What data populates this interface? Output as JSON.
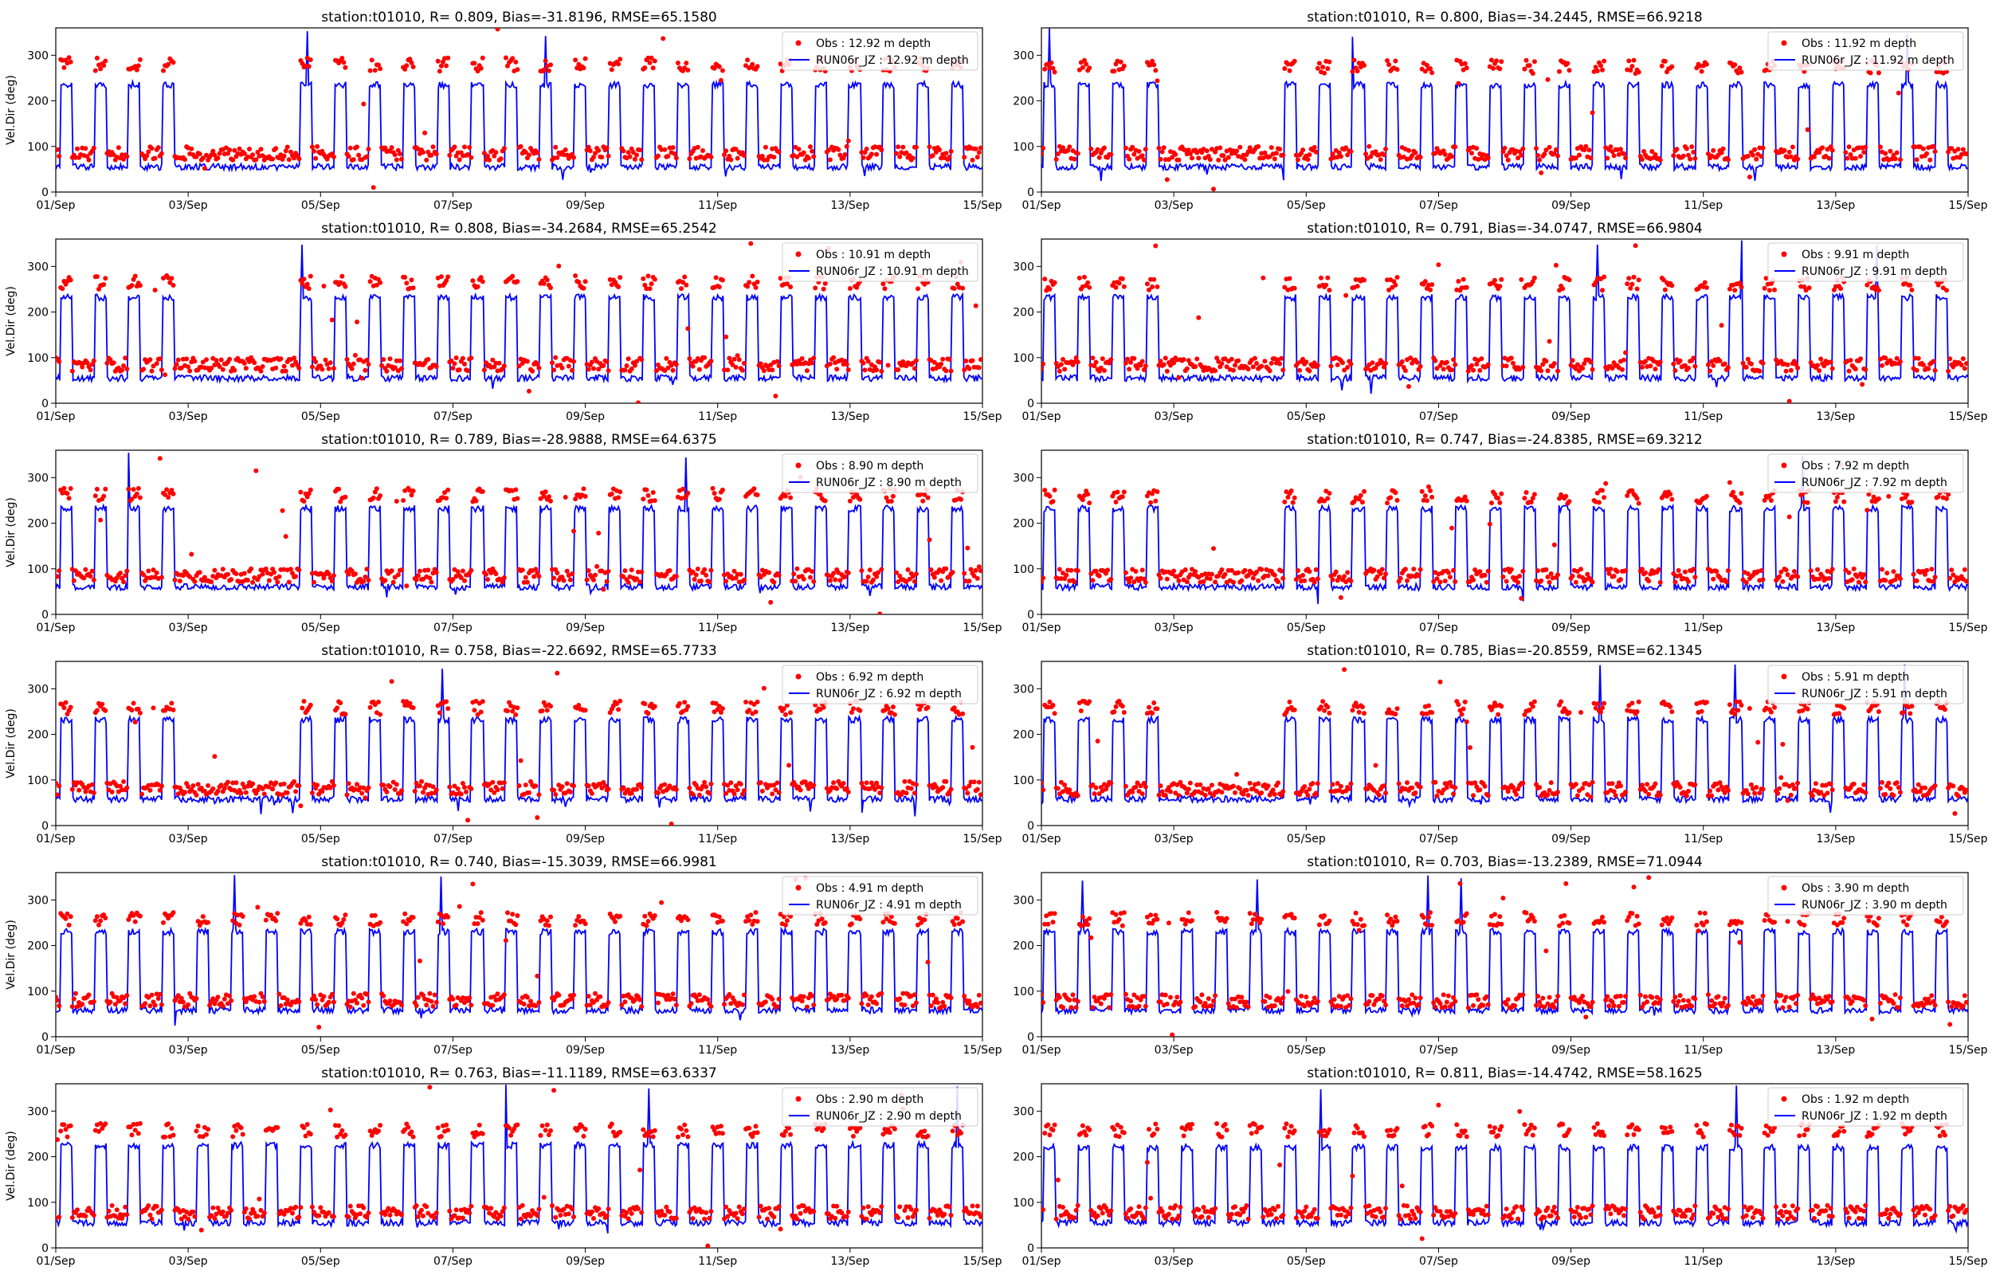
{
  "figure": {
    "ylabel": "Vel.Dir (deg)",
    "yticks": [
      0,
      100,
      200,
      300
    ],
    "ylim": [
      0,
      360
    ],
    "xticks": [
      "01/Sep",
      "03/Sep",
      "05/Sep",
      "07/Sep",
      "09/Sep",
      "11/Sep",
      "13/Sep",
      "15/Sep"
    ],
    "obs_color": "#ff0000",
    "model_color": "#0000ff"
  },
  "chart_data": [
    {
      "type": "scatter+line",
      "title": "station:t01010, R= 0.809, Bias=-31.8196, RMSE=65.1580",
      "legend": [
        "Obs : 12.92 m depth",
        "RUN06r_JZ : 12.92 m depth"
      ],
      "xlabel": "",
      "ylabel": "Vel.Dir (deg)",
      "ylim": [
        0,
        360
      ],
      "x_range": [
        "01/Sep",
        "15/Sep"
      ],
      "obs_low": 85,
      "obs_high": 280,
      "model_low": 55,
      "model_high": 235,
      "seed": 11
    },
    {
      "type": "scatter+line",
      "title": "station:t01010, R= 0.800, Bias=-34.2445, RMSE=66.9218",
      "legend": [
        "Obs : 11.92 m depth",
        "RUN06r_JZ : 11.92 m depth"
      ],
      "xlabel": "",
      "ylabel": "",
      "ylim": [
        0,
        360
      ],
      "x_range": [
        "01/Sep",
        "15/Sep"
      ],
      "obs_low": 85,
      "obs_high": 275,
      "model_low": 55,
      "model_high": 235,
      "seed": 12
    },
    {
      "type": "scatter+line",
      "title": "station:t01010, R= 0.808, Bias=-34.2684, RMSE=65.2542",
      "legend": [
        "Obs : 10.91 m depth",
        "RUN06r_JZ : 10.91 m depth"
      ],
      "xlabel": "",
      "ylabel": "Vel.Dir (deg)",
      "ylim": [
        0,
        360
      ],
      "x_range": [
        "01/Sep",
        "15/Sep"
      ],
      "obs_low": 85,
      "obs_high": 265,
      "model_low": 55,
      "model_high": 232,
      "seed": 13
    },
    {
      "type": "scatter+line",
      "title": "station:t01010, R= 0.791, Bias=-34.0747, RMSE=66.9804",
      "legend": [
        "Obs : 9.91 m depth",
        "RUN06r_JZ : 9.91 m depth"
      ],
      "xlabel": "",
      "ylabel": "",
      "ylim": [
        0,
        360
      ],
      "x_range": [
        "01/Sep",
        "15/Sep"
      ],
      "obs_low": 85,
      "obs_high": 262,
      "model_low": 55,
      "model_high": 232,
      "seed": 14
    },
    {
      "type": "scatter+line",
      "title": "station:t01010, R= 0.789, Bias=-28.9888, RMSE=64.6375",
      "legend": [
        "Obs : 8.90 m depth",
        "RUN06r_JZ : 8.90 m depth"
      ],
      "xlabel": "",
      "ylabel": "Vel.Dir (deg)",
      "ylim": [
        0,
        360
      ],
      "x_range": [
        "01/Sep",
        "15/Sep"
      ],
      "obs_low": 85,
      "obs_high": 262,
      "model_low": 60,
      "model_high": 232,
      "seed": 15
    },
    {
      "type": "scatter+line",
      "title": "station:t01010, R= 0.747, Bias=-24.8385, RMSE=69.3212",
      "legend": [
        "Obs : 7.92 m depth",
        "RUN06r_JZ : 7.92 m depth"
      ],
      "xlabel": "",
      "ylabel": "",
      "ylim": [
        0,
        360
      ],
      "x_range": [
        "01/Sep",
        "15/Sep"
      ],
      "obs_low": 85,
      "obs_high": 258,
      "model_low": 60,
      "model_high": 232,
      "seed": 16
    },
    {
      "type": "scatter+line",
      "title": "station:t01010, R= 0.758, Bias=-22.6692, RMSE=65.7733",
      "legend": [
        "Obs : 6.92 m depth",
        "RUN06r_JZ : 6.92 m depth"
      ],
      "xlabel": "",
      "ylabel": "Vel.Dir (deg)",
      "ylim": [
        0,
        360
      ],
      "x_range": [
        "01/Sep",
        "15/Sep"
      ],
      "obs_low": 82,
      "obs_high": 258,
      "model_low": 58,
      "model_high": 232,
      "seed": 17
    },
    {
      "type": "scatter+line",
      "title": "station:t01010, R= 0.785, Bias=-20.8559, RMSE=62.1345",
      "legend": [
        "Obs : 5.91 m depth",
        "RUN06r_JZ : 5.91 m depth"
      ],
      "xlabel": "",
      "ylabel": "",
      "ylim": [
        0,
        360
      ],
      "x_range": [
        "01/Sep",
        "15/Sep"
      ],
      "obs_low": 80,
      "obs_high": 258,
      "model_low": 58,
      "model_high": 232,
      "seed": 18
    },
    {
      "type": "scatter+line",
      "title": "station:t01010, R= 0.740, Bias=-15.3039, RMSE=66.9981",
      "legend": [
        "Obs : 4.91 m depth",
        "RUN06r_JZ : 4.91 m depth"
      ],
      "xlabel": "",
      "ylabel": "Vel.Dir (deg)",
      "ylim": [
        0,
        360
      ],
      "x_range": [
        "01/Sep",
        "15/Sep"
      ],
      "obs_low": 80,
      "obs_high": 258,
      "model_low": 58,
      "model_high": 230,
      "seed": 19
    },
    {
      "type": "scatter+line",
      "title": "station:t01010, R= 0.703, Bias=-13.2389, RMSE=71.0944",
      "legend": [
        "Obs : 3.90 m depth",
        "RUN06r_JZ : 3.90 m depth"
      ],
      "xlabel": "",
      "ylabel": "",
      "ylim": [
        0,
        360
      ],
      "x_range": [
        "01/Sep",
        "15/Sep"
      ],
      "obs_low": 78,
      "obs_high": 258,
      "model_low": 58,
      "model_high": 230,
      "seed": 20
    },
    {
      "type": "scatter+line",
      "title": "station:t01010, R= 0.763, Bias=-11.1189, RMSE=63.6337",
      "legend": [
        "Obs : 2.90 m depth",
        "RUN06r_JZ : 2.90 m depth"
      ],
      "xlabel": "",
      "ylabel": "Vel.Dir (deg)",
      "ylim": [
        0,
        360
      ],
      "x_range": [
        "01/Sep",
        "15/Sep"
      ],
      "obs_low": 78,
      "obs_high": 258,
      "model_low": 55,
      "model_high": 225,
      "seed": 21
    },
    {
      "type": "scatter+line",
      "title": "station:t01010, R= 0.811, Bias=-14.4742, RMSE=58.1625",
      "legend": [
        "Obs : 1.92 m depth",
        "RUN06r_JZ : 1.92 m depth"
      ],
      "xlabel": "",
      "ylabel": "",
      "ylim": [
        0,
        360
      ],
      "x_range": [
        "01/Sep",
        "15/Sep"
      ],
      "obs_low": 78,
      "obs_high": 258,
      "model_low": 55,
      "model_high": 220,
      "seed": 22
    }
  ]
}
